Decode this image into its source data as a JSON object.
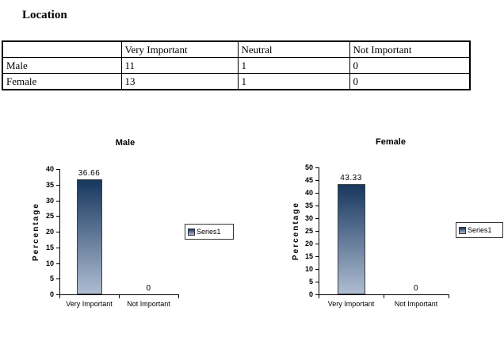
{
  "page": {
    "title": "Location"
  },
  "table": {
    "headers": [
      "",
      "Very Important",
      "Neutral",
      "Not Important"
    ],
    "rows": [
      {
        "label": "Male",
        "values": [
          "11",
          "1",
          "0"
        ]
      },
      {
        "label": "Female",
        "values": [
          "13",
          "1",
          "0"
        ]
      }
    ]
  },
  "chart_data": [
    {
      "type": "bar",
      "title": "Male",
      "ylabel": "Percentage",
      "xlabel": "",
      "categories": [
        "Very Important",
        "Not Important"
      ],
      "values": [
        36.66,
        0
      ],
      "data_labels": [
        "36.66",
        "0"
      ],
      "ylim": [
        0,
        40
      ],
      "yticks": [
        0,
        5,
        10,
        15,
        20,
        25,
        30,
        35,
        40
      ],
      "legend": [
        "Series1"
      ],
      "legend_position": "right",
      "grid": false,
      "colors": {
        "bar_gradient_top": "#17375E",
        "bar_gradient_bottom": "#AEBCD2",
        "bar_border": "#404040",
        "axis": "#000000"
      }
    },
    {
      "type": "bar",
      "title": "Female",
      "ylabel": "Percentage",
      "xlabel": "",
      "categories": [
        "Very Important",
        "Not Important"
      ],
      "values": [
        43.33,
        0
      ],
      "data_labels": [
        "43.33",
        "0"
      ],
      "ylim": [
        0,
        50
      ],
      "yticks": [
        0,
        5,
        10,
        15,
        20,
        25,
        30,
        35,
        40,
        45,
        50
      ],
      "legend": [
        "Series1"
      ],
      "legend_position": "right",
      "grid": false,
      "colors": {
        "bar_gradient_top": "#17375E",
        "bar_gradient_bottom": "#AEBCD2",
        "bar_border": "#404040",
        "axis": "#000000"
      }
    }
  ]
}
